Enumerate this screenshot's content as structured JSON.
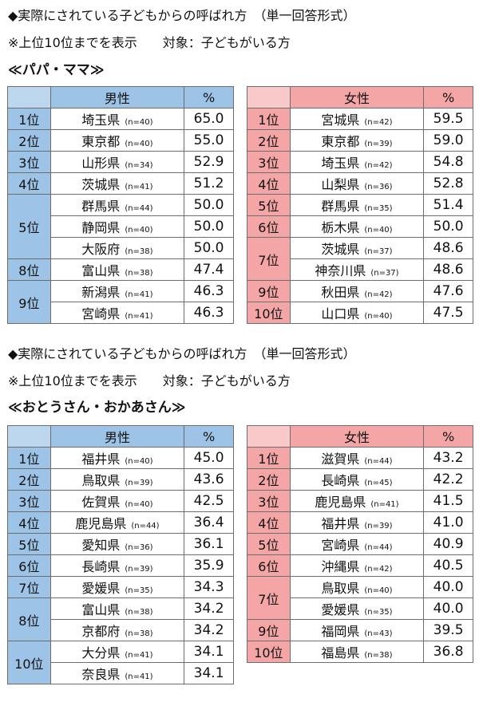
{
  "sections": [
    {
      "heading": "◆実際にされている子どもからの呼ばれ方　（単一回答形式）",
      "note": "※上位10位までを表示　　対象：子どもがいる方",
      "subtitle": "≪パパ・ママ≫",
      "male": {
        "col_label": "男性",
        "pct_label": "%",
        "rows": [
          {
            "rank": "1位",
            "pref": "埼玉県",
            "n": "(n=40)",
            "pct": "65.0"
          },
          {
            "rank": "2位",
            "pref": "東京都",
            "n": "(n=40)",
            "pct": "55.0"
          },
          {
            "rank": "3位",
            "pref": "山形県",
            "n": "(n=34)",
            "pct": "52.9"
          },
          {
            "rank": "4位",
            "pref": "茨城県",
            "n": "(n=41)",
            "pct": "51.2"
          },
          {
            "rank": "5位",
            "pref": "群馬県",
            "n": "(n=44)",
            "pct": "50.0"
          },
          {
            "rank": "",
            "pref": "静岡県",
            "n": "(n=40)",
            "pct": "50.0"
          },
          {
            "rank": "",
            "pref": "大阪府",
            "n": "(n=38)",
            "pct": "50.0"
          },
          {
            "rank": "8位",
            "pref": "富山県",
            "n": "(n=38)",
            "pct": "47.4"
          },
          {
            "rank": "9位",
            "pref": "新潟県",
            "n": "(n=41)",
            "pct": "46.3"
          },
          {
            "rank": "",
            "pref": "宮崎県",
            "n": "(n=41)",
            "pct": "46.3"
          }
        ]
      },
      "female": {
        "col_label": "女性",
        "pct_label": "%",
        "rows": [
          {
            "rank": "1位",
            "pref": "宮城県",
            "n": "(n=42)",
            "pct": "59.5"
          },
          {
            "rank": "2位",
            "pref": "東京都",
            "n": "(n=39)",
            "pct": "59.0"
          },
          {
            "rank": "3位",
            "pref": "埼玉県",
            "n": "(n=42)",
            "pct": "54.8"
          },
          {
            "rank": "4位",
            "pref": "山梨県",
            "n": "(n=36)",
            "pct": "52.8"
          },
          {
            "rank": "5位",
            "pref": "群馬県",
            "n": "(n=35)",
            "pct": "51.4"
          },
          {
            "rank": "6位",
            "pref": "栃木県",
            "n": "(n=40)",
            "pct": "50.0"
          },
          {
            "rank": "7位",
            "pref": "茨城県",
            "n": "(n=37)",
            "pct": "48.6"
          },
          {
            "rank": "",
            "pref": "神奈川県",
            "n": "(n=37)",
            "pct": "48.6"
          },
          {
            "rank": "9位",
            "pref": "秋田県",
            "n": "(n=42)",
            "pct": "47.6"
          },
          {
            "rank": "10位",
            "pref": "山口県",
            "n": "(n=40)",
            "pct": "47.5"
          }
        ]
      }
    },
    {
      "heading": "◆実際にされている子どもからの呼ばれ方　（単一回答形式）",
      "note": "※上位10位までを表示　　対象：子どもがいる方",
      "subtitle": "≪おとうさん・おかあさん≫",
      "male": {
        "col_label": "男性",
        "pct_label": "%",
        "rows": [
          {
            "rank": "1位",
            "pref": "福井県",
            "n": "(n=40)",
            "pct": "45.0"
          },
          {
            "rank": "2位",
            "pref": "鳥取県",
            "n": "(n=39)",
            "pct": "43.6"
          },
          {
            "rank": "3位",
            "pref": "佐賀県",
            "n": "(n=40)",
            "pct": "42.5"
          },
          {
            "rank": "4位",
            "pref": "鹿児島県",
            "n": "(n=44)",
            "pct": "36.4"
          },
          {
            "rank": "5位",
            "pref": "愛知県",
            "n": "(n=36)",
            "pct": "36.1"
          },
          {
            "rank": "6位",
            "pref": "長崎県",
            "n": "(n=39)",
            "pct": "35.9"
          },
          {
            "rank": "7位",
            "pref": "愛媛県",
            "n": "(n=35)",
            "pct": "34.3"
          },
          {
            "rank": "8位",
            "pref": "富山県",
            "n": "(n=38)",
            "pct": "34.2"
          },
          {
            "rank": "",
            "pref": "京都府",
            "n": "(n=38)",
            "pct": "34.2"
          },
          {
            "rank": "10位",
            "pref": "大分県",
            "n": "(n=41)",
            "pct": "34.1"
          },
          {
            "rank": "",
            "pref": "奈良県",
            "n": "(n=41)",
            "pct": "34.1"
          }
        ]
      },
      "female": {
        "col_label": "女性",
        "pct_label": "%",
        "rows": [
          {
            "rank": "1位",
            "pref": "滋賀県",
            "n": "(n=44)",
            "pct": "43.2"
          },
          {
            "rank": "2位",
            "pref": "長崎県",
            "n": "(n=45)",
            "pct": "42.2"
          },
          {
            "rank": "3位",
            "pref": "鹿児島県",
            "n": "(n=41)",
            "pct": "41.5"
          },
          {
            "rank": "4位",
            "pref": "福井県",
            "n": "(n=39)",
            "pct": "41.0"
          },
          {
            "rank": "5位",
            "pref": "宮崎県",
            "n": "(n=44)",
            "pct": "40.9"
          },
          {
            "rank": "6位",
            "pref": "沖縄県",
            "n": "(n=42)",
            "pct": "40.5"
          },
          {
            "rank": "7位",
            "pref": "鳥取県",
            "n": "(n=40)",
            "pct": "40.0"
          },
          {
            "rank": "",
            "pref": "愛媛県",
            "n": "(n=35)",
            "pct": "40.0"
          },
          {
            "rank": "9位",
            "pref": "福岡県",
            "n": "(n=43)",
            "pct": "39.5"
          },
          {
            "rank": "10位",
            "pref": "福島県",
            "n": "(n=38)",
            "pct": "36.8"
          }
        ]
      }
    }
  ]
}
